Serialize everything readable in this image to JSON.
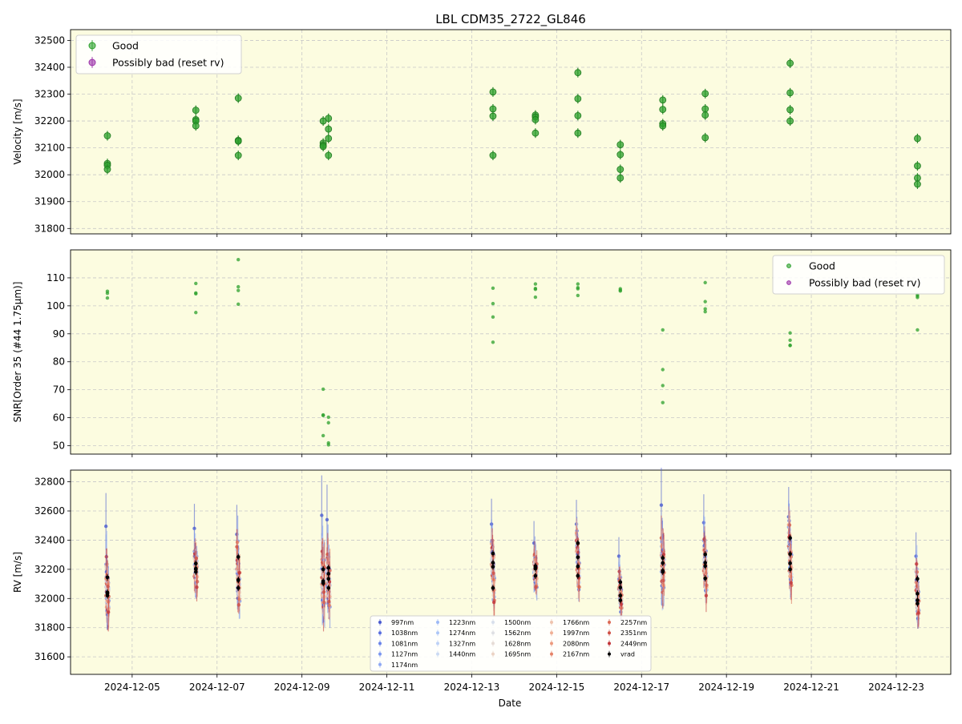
{
  "title": "LBL CDM35_2722_GL846",
  "x_axis": {
    "label": "Date",
    "ticks": [
      "2024-12-05",
      "2024-12-07",
      "2024-12-09",
      "2024-12-11",
      "2024-12-13",
      "2024-12-15",
      "2024-12-17",
      "2024-12-19",
      "2024-12-21",
      "2024-12-23"
    ],
    "range": [
      "2024-12-03 13:10",
      "2024-12-24 06:50"
    ]
  },
  "colors": {
    "background": "#fcfce0",
    "good": "#2ca02c",
    "bad": "#9b30a8",
    "grid": "#c8c8c8",
    "vrad": "#000000"
  },
  "chart_data": [
    {
      "type": "scatter",
      "ylabel": "Velocity [m/s]",
      "ylim": [
        31780,
        32540
      ],
      "yticks": [
        31800,
        31900,
        32000,
        32100,
        32200,
        32300,
        32400,
        32500
      ],
      "grid": true,
      "legend_placement": "top-left",
      "legend": [
        "Good",
        "Possibly bad (reset rv)"
      ],
      "series": [
        {
          "name": "Good",
          "points": [
            [
              "2024-12-04 10:00",
              32145
            ],
            [
              "2024-12-04 10:00",
              32042
            ],
            [
              "2024-12-04 10:00",
              32035
            ],
            [
              "2024-12-04 10:00",
              32020
            ],
            [
              "2024-12-06 12:00",
              32240
            ],
            [
              "2024-12-06 12:00",
              32205
            ],
            [
              "2024-12-06 12:00",
              32200
            ],
            [
              "2024-12-06 12:00",
              32182
            ],
            [
              "2024-12-07 12:00",
              32285
            ],
            [
              "2024-12-07 12:00",
              32128
            ],
            [
              "2024-12-07 12:00",
              32125
            ],
            [
              "2024-12-07 12:00",
              32072
            ],
            [
              "2024-12-09 12:00",
              32200
            ],
            [
              "2024-12-09 12:00",
              32118
            ],
            [
              "2024-12-09 12:00",
              32110
            ],
            [
              "2024-12-09 12:00",
              32105
            ],
            [
              "2024-12-09 15:00",
              32210
            ],
            [
              "2024-12-09 15:00",
              32170
            ],
            [
              "2024-12-09 15:00",
              32135
            ],
            [
              "2024-12-09 15:00",
              32072
            ],
            [
              "2024-12-13 12:00",
              32308
            ],
            [
              "2024-12-13 12:00",
              32245
            ],
            [
              "2024-12-13 12:00",
              32218
            ],
            [
              "2024-12-13 12:00",
              32072
            ],
            [
              "2024-12-14 12:00",
              32222
            ],
            [
              "2024-12-14 12:00",
              32215
            ],
            [
              "2024-12-14 12:00",
              32205
            ],
            [
              "2024-12-14 12:00",
              32155
            ],
            [
              "2024-12-15 12:00",
              32380
            ],
            [
              "2024-12-15 12:00",
              32283
            ],
            [
              "2024-12-15 12:00",
              32220
            ],
            [
              "2024-12-15 12:00",
              32155
            ],
            [
              "2024-12-16 12:00",
              32112
            ],
            [
              "2024-12-16 12:00",
              32075
            ],
            [
              "2024-12-16 12:00",
              32020
            ],
            [
              "2024-12-16 12:00",
              31988
            ],
            [
              "2024-12-17 12:00",
              32278
            ],
            [
              "2024-12-17 12:00",
              32243
            ],
            [
              "2024-12-17 12:00",
              32190
            ],
            [
              "2024-12-17 12:00",
              32182
            ],
            [
              "2024-12-18 12:00",
              32302
            ],
            [
              "2024-12-18 12:00",
              32245
            ],
            [
              "2024-12-18 12:00",
              32222
            ],
            [
              "2024-12-18 12:00",
              32138
            ],
            [
              "2024-12-20 12:00",
              32415
            ],
            [
              "2024-12-20 12:00",
              32305
            ],
            [
              "2024-12-20 12:00",
              32242
            ],
            [
              "2024-12-20 12:00",
              32200
            ],
            [
              "2024-12-23 12:00",
              32135
            ],
            [
              "2024-12-23 12:00",
              32033
            ],
            [
              "2024-12-23 12:00",
              31988
            ],
            [
              "2024-12-23 12:00",
              31965
            ]
          ]
        },
        {
          "name": "Possibly bad (reset rv)",
          "points": []
        }
      ]
    },
    {
      "type": "scatter",
      "ylabel": "SNR[Order 35 (#44 1.75μm)]",
      "ylim": [
        47,
        120
      ],
      "yticks": [
        50,
        60,
        70,
        80,
        90,
        100,
        110
      ],
      "grid": true,
      "legend_placement": "top-right",
      "legend": [
        "Good",
        "Possibly bad (reset rv)"
      ],
      "series": [
        {
          "name": "Good",
          "points": [
            [
              "2024-12-04 10:00",
              105.2
            ],
            [
              "2024-12-04 10:00",
              104.5
            ],
            [
              "2024-12-04 10:00",
              102.8
            ],
            [
              "2024-12-06 12:00",
              108
            ],
            [
              "2024-12-06 12:00",
              104.6
            ],
            [
              "2024-12-06 12:00",
              104.3
            ],
            [
              "2024-12-06 12:00",
              97.6
            ],
            [
              "2024-12-07 12:00",
              116.5
            ],
            [
              "2024-12-07 12:00",
              106.8
            ],
            [
              "2024-12-07 12:00",
              105.5
            ],
            [
              "2024-12-07 12:00",
              100.6
            ],
            [
              "2024-12-09 12:00",
              70.2
            ],
            [
              "2024-12-09 12:00",
              61
            ],
            [
              "2024-12-09 12:00",
              60.8
            ],
            [
              "2024-12-09 12:00",
              53.6
            ],
            [
              "2024-12-09 15:00",
              60.2
            ],
            [
              "2024-12-09 15:00",
              58.2
            ],
            [
              "2024-12-09 15:00",
              51
            ],
            [
              "2024-12-09 15:00",
              50.3
            ],
            [
              "2024-12-13 12:00",
              106.3
            ],
            [
              "2024-12-13 12:00",
              100.8
            ],
            [
              "2024-12-13 12:00",
              96
            ],
            [
              "2024-12-13 12:00",
              87
            ],
            [
              "2024-12-14 12:00",
              107.8
            ],
            [
              "2024-12-14 12:00",
              106.2
            ],
            [
              "2024-12-14 12:00",
              105.9
            ],
            [
              "2024-12-14 12:00",
              103.1
            ],
            [
              "2024-12-15 12:00",
              107.8
            ],
            [
              "2024-12-15 12:00",
              106.5
            ],
            [
              "2024-12-15 12:00",
              106.1
            ],
            [
              "2024-12-15 12:00",
              103.7
            ],
            [
              "2024-12-16 12:00",
              106.1
            ],
            [
              "2024-12-16 12:00",
              105.6
            ],
            [
              "2024-12-16 12:00",
              105.3
            ],
            [
              "2024-12-17 12:00",
              91.4
            ],
            [
              "2024-12-17 12:00",
              77.2
            ],
            [
              "2024-12-17 12:00",
              71.5
            ],
            [
              "2024-12-17 12:00",
              65.4
            ],
            [
              "2024-12-18 12:00",
              108.3
            ],
            [
              "2024-12-18 12:00",
              101.5
            ],
            [
              "2024-12-18 12:00",
              98.9
            ],
            [
              "2024-12-18 12:00",
              97.9
            ],
            [
              "2024-12-20 12:00",
              90.3
            ],
            [
              "2024-12-20 12:00",
              87.7
            ],
            [
              "2024-12-20 12:00",
              85.9
            ],
            [
              "2024-12-20 12:00",
              85.8
            ],
            [
              "2024-12-23 12:00",
              104
            ],
            [
              "2024-12-23 12:00",
              103.5
            ],
            [
              "2024-12-23 12:00",
              103
            ],
            [
              "2024-12-23 12:00",
              91.4
            ]
          ]
        },
        {
          "name": "Possibly bad (reset rv)",
          "points": []
        }
      ]
    },
    {
      "type": "scatter",
      "ylabel": "RV [m/s]",
      "xlabel": "Date",
      "ylim": [
        31480,
        32880
      ],
      "yticks": [
        31600,
        31800,
        32000,
        32200,
        32400,
        32600,
        32800
      ],
      "grid": true,
      "legend_placement": "lower-center",
      "legend": [
        "997nm",
        "1038nm",
        "1081nm",
        "1127nm",
        "1174nm",
        "1223nm",
        "1274nm",
        "1327nm",
        "1440nm",
        "1500nm",
        "1562nm",
        "1628nm",
        "1695nm",
        "1766nm",
        "1997nm",
        "2080nm",
        "2167nm",
        "2257nm",
        "2351nm",
        "2449nm",
        "vrad"
      ],
      "legend_colors": [
        "#4a5bd0",
        "#5a6fe0",
        "#6a84ea",
        "#7b97f0",
        "#8fa9f4",
        "#9db9f6",
        "#adc6f7",
        "#bdd1f6",
        "#cbdaf3",
        "#d8dfec",
        "#dfe0e4",
        "#e6dcd6",
        "#ebd3c4",
        "#efc3ae",
        "#f0b096",
        "#ec9a7e",
        "#e58268",
        "#db6a55",
        "#cf5045",
        "#c23438",
        "#000000"
      ],
      "groups": [
        {
          "t": "2024-12-04 10:00",
          "vrad": [
            32145,
            32042,
            32035,
            32020
          ],
          "lo": 31700,
          "hi": 32590,
          "peak": 32495
        },
        {
          "t": "2024-12-06 12:00",
          "vrad": [
            32240,
            32205,
            32200,
            32182
          ],
          "lo": 31970,
          "hi": 32630,
          "peak": 32480
        },
        {
          "t": "2024-12-07 12:00",
          "vrad": [
            32285,
            32128,
            32125,
            32072
          ],
          "lo": 31740,
          "hi": 32530,
          "peak": 32440
        },
        {
          "t": "2024-12-09 12:00",
          "vrad": [
            32200,
            32118,
            32110,
            32105
          ],
          "lo": 31650,
          "hi": 32720,
          "peak": 32570
        },
        {
          "t": "2024-12-09 15:00",
          "vrad": [
            32210,
            32170,
            32135,
            32072
          ],
          "lo": 31780,
          "hi": 32720,
          "peak": 32540
        },
        {
          "t": "2024-12-13 12:00",
          "vrad": [
            32308,
            32245,
            32218,
            32072
          ],
          "lo": 31940,
          "hi": 32620,
          "peak": 32510
        },
        {
          "t": "2024-12-14 12:00",
          "vrad": [
            32222,
            32215,
            32205,
            32155
          ],
          "lo": 31900,
          "hi": 32490,
          "peak": 32380
        },
        {
          "t": "2024-12-15 12:00",
          "vrad": [
            32380,
            32283,
            32220,
            32155
          ],
          "lo": 31960,
          "hi": 32610,
          "peak": 32510
        },
        {
          "t": "2024-12-16 12:00",
          "vrad": [
            32112,
            32075,
            32020,
            31988
          ],
          "lo": 31880,
          "hi": 32390,
          "peak": 32290
        },
        {
          "t": "2024-12-17 12:00",
          "vrad": [
            32278,
            32243,
            32190,
            32182
          ],
          "lo": 31800,
          "hi": 32800,
          "peak": 32640
        },
        {
          "t": "2024-12-18 12:00",
          "vrad": [
            32302,
            32245,
            32222,
            32138
          ],
          "lo": 31830,
          "hi": 32590,
          "peak": 32520
        },
        {
          "t": "2024-12-20 12:00",
          "vrad": [
            32415,
            32305,
            32242,
            32200
          ],
          "lo": 31870,
          "hi": 32670,
          "peak": 32560
        },
        {
          "t": "2024-12-23 12:00",
          "vrad": [
            32135,
            32033,
            31988,
            31965
          ],
          "lo": 31700,
          "hi": 32340,
          "peak": 32290
        }
      ]
    }
  ]
}
